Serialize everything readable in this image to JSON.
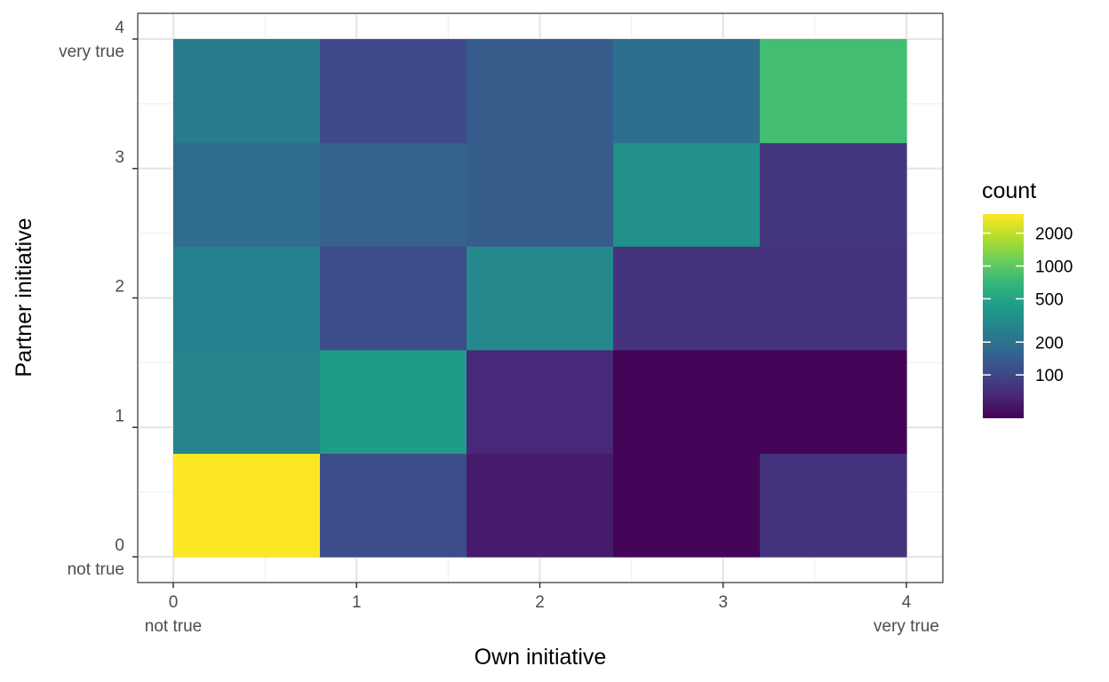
{
  "chart_data": {
    "type": "heatmap",
    "xlabel": "Own initiative",
    "ylabel": "Partner initiative",
    "xlim": [
      0,
      4
    ],
    "ylim": [
      0,
      4
    ],
    "bin_width": 0.8,
    "x_ticks": [
      {
        "value": 0,
        "label": "0",
        "sublabel": "not true"
      },
      {
        "value": 1,
        "label": "1",
        "sublabel": ""
      },
      {
        "value": 2,
        "label": "2",
        "sublabel": ""
      },
      {
        "value": 3,
        "label": "3",
        "sublabel": ""
      },
      {
        "value": 4,
        "label": "4",
        "sublabel": "very true"
      }
    ],
    "y_ticks": [
      {
        "value": 0,
        "label": "0",
        "sublabel": "not true"
      },
      {
        "value": 1,
        "label": "1",
        "sublabel": ""
      },
      {
        "value": 2,
        "label": "2",
        "sublabel": ""
      },
      {
        "value": 3,
        "label": "3",
        "sublabel": ""
      },
      {
        "value": 4,
        "label": "4",
        "sublabel": "very true"
      }
    ],
    "color_scale": {
      "name": "viridis",
      "transform": "log10",
      "domain": [
        40,
        3000
      ],
      "title": "count",
      "breaks": [
        100,
        200,
        500,
        1000,
        2000
      ],
      "break_labels": [
        "100",
        "200",
        "500",
        "1000",
        "2000"
      ]
    },
    "x_bins": [
      [
        0,
        0.8
      ],
      [
        0.8,
        1.6
      ],
      [
        1.6,
        2.4
      ],
      [
        2.4,
        3.2
      ],
      [
        3.2,
        4.0
      ]
    ],
    "y_bins": [
      [
        0,
        0.8
      ],
      [
        0.8,
        1.6
      ],
      [
        1.6,
        2.4
      ],
      [
        2.4,
        3.2
      ],
      [
        3.2,
        4.0
      ]
    ],
    "counts": [
      [
        3000,
        110,
        55,
        42,
        75
      ],
      [
        280,
        420,
        65,
        42,
        42
      ],
      [
        270,
        110,
        300,
        75,
        75
      ],
      [
        180,
        150,
        140,
        350,
        80
      ],
      [
        240,
        105,
        140,
        190,
        800
      ]
    ]
  }
}
